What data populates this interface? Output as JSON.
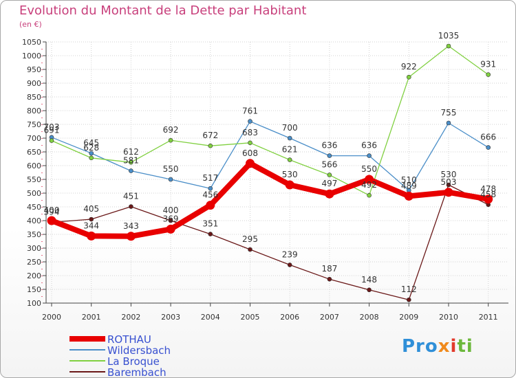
{
  "title": "Evolution du Montant de la Dette par Habitant",
  "unit": "(en €)",
  "logo": {
    "text": "Proxiti",
    "parts": [
      "Pro",
      "x",
      "i",
      "ti"
    ]
  },
  "chart_data": {
    "type": "line",
    "x": [
      "2000",
      "2001",
      "2002",
      "2003",
      "2004",
      "2005",
      "2006",
      "2007",
      "2008",
      "2009",
      "2010",
      "2011"
    ],
    "ylim": [
      100,
      1050
    ],
    "yticks": [
      100,
      150,
      200,
      250,
      300,
      350,
      400,
      450,
      500,
      550,
      600,
      650,
      700,
      750,
      800,
      850,
      900,
      950,
      1000,
      1050
    ],
    "grid": true,
    "legend_position": "bottom-left",
    "series": [
      {
        "name": "ROTHAU",
        "color": "#e80000",
        "bold": true,
        "values": [
          400,
          344,
          343,
          369,
          456,
          608,
          530,
          497,
          550,
          489,
          503,
          478
        ],
        "labels": [
          "400",
          "344",
          "343",
          "369",
          "456",
          "608",
          "530",
          "497",
          "550",
          "489",
          "503",
          "478"
        ]
      },
      {
        "name": "Wildersbach",
        "color": "#4a8ec8",
        "bold": false,
        "values": [
          703,
          645,
          581,
          550,
          517,
          761,
          700,
          636,
          636,
          510,
          755,
          666
        ],
        "labels": [
          "703",
          "645",
          "581",
          "550",
          "517",
          "761",
          "700",
          "636",
          "636",
          "510",
          "755",
          "666"
        ]
      },
      {
        "name": "La Broque",
        "color": "#80d040",
        "bold": false,
        "values": [
          691,
          628,
          612,
          692,
          672,
          683,
          621,
          566,
          492,
          922,
          1035,
          931
        ],
        "labels": [
          "691",
          "628",
          "612",
          "692",
          "672",
          "683",
          "621",
          "566",
          "492",
          "922",
          "1035",
          "931"
        ]
      },
      {
        "name": "Barembach",
        "color": "#6a1818",
        "bold": false,
        "values": [
          394,
          405,
          451,
          400,
          351,
          295,
          239,
          187,
          148,
          112,
          530,
          458
        ],
        "labels": [
          "394",
          "405",
          "451",
          "400",
          "351",
          "295",
          "239",
          "187",
          "148",
          "112",
          "530",
          "458"
        ]
      }
    ]
  }
}
